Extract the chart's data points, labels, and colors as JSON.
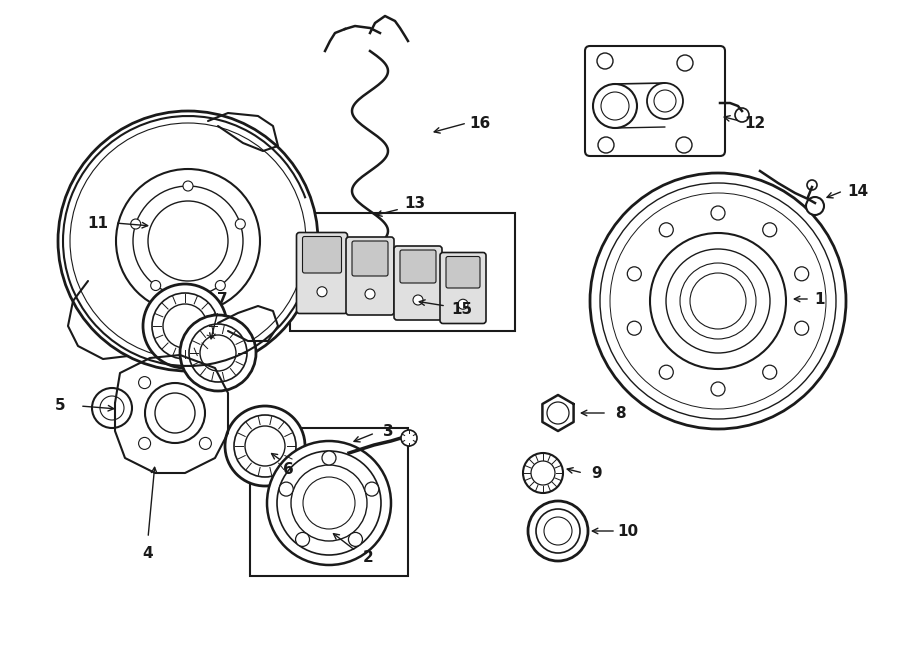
{
  "bg_color": "#ffffff",
  "line_color": "#1a1a1a",
  "label_color": "#000000",
  "figsize": [
    9.0,
    6.61
  ],
  "dpi": 100,
  "xlim": [
    0,
    900
  ],
  "ylim": [
    0,
    661
  ]
}
